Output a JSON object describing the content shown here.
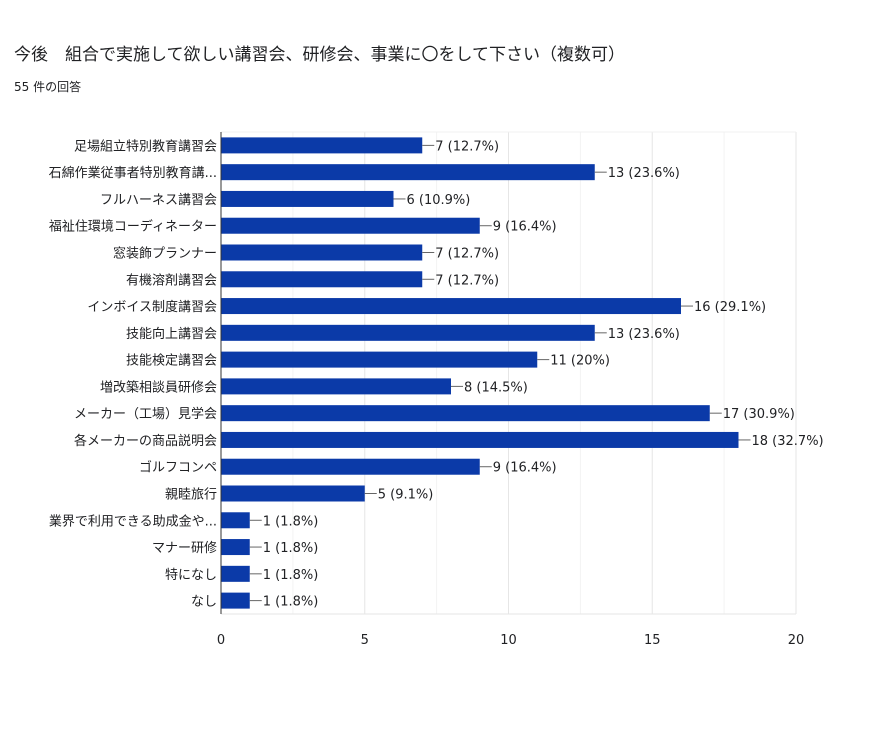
{
  "header": {
    "title": "今後　組合で実施して欲しい講習会、研修会、事業に〇をして下さい（複数可）",
    "responses": "55 件の回答"
  },
  "chart_data": {
    "type": "bar",
    "orientation": "horizontal",
    "categories": [
      "足場組立特別教育講習会",
      "石綿作業従事者特別教育講...",
      "フルハーネス講習会",
      "福祉住環境コーディネーター",
      "窓装飾プランナー",
      "有機溶剤講習会",
      "インボイス制度講習会",
      "技能向上講習会",
      "技能検定講習会",
      "増改築相談員研修会",
      "メーカー（工場）見学会",
      "各メーカーの商品説明会",
      "ゴルフコンペ",
      "親睦旅行",
      "業界で利用できる助成金や...",
      "マナー研修",
      "特になし",
      "なし"
    ],
    "values": [
      7,
      13,
      6,
      9,
      7,
      7,
      16,
      13,
      11,
      8,
      17,
      18,
      9,
      5,
      1,
      1,
      1,
      1
    ],
    "value_labels": [
      "7 (12.7%)",
      "13 (23.6%)",
      "6 (10.9%)",
      "9 (16.4%)",
      "7 (12.7%)",
      "7 (12.7%)",
      "16 (29.1%)",
      "13 (23.6%)",
      "11 (20%)",
      "8 (14.5%)",
      "17 (30.9%)",
      "18 (32.7%)",
      "9 (16.4%)",
      "5 (9.1%)",
      "1 (1.8%)",
      "1 (1.8%)",
      "1 (1.8%)",
      "1 (1.8%)"
    ],
    "xlim": [
      0,
      20
    ],
    "xticks": [
      0,
      5,
      10,
      15,
      20
    ],
    "bar_color": "#0b3aa8",
    "grid": true
  }
}
